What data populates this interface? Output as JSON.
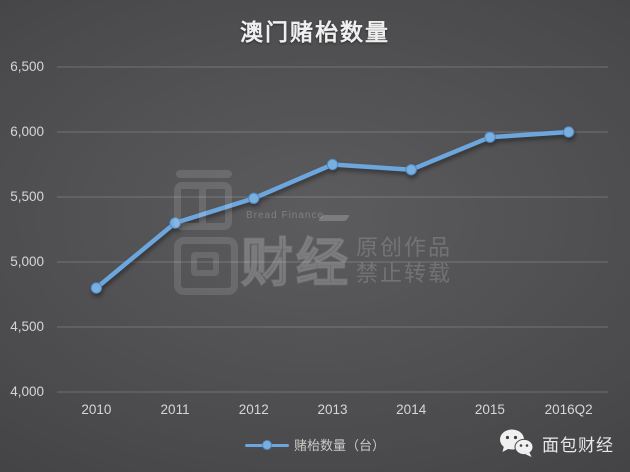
{
  "title": "澳门赌枱数量",
  "chart_data": {
    "type": "line",
    "title": "澳门赌枱数量",
    "categories": [
      "2010",
      "2011",
      "2012",
      "2013",
      "2014",
      "2015",
      "2016Q2"
    ],
    "series": [
      {
        "name": "赌枱数量（台）",
        "values": [
          4800,
          5300,
          5490,
          5750,
          5710,
          5960,
          6000
        ]
      }
    ],
    "ylim": [
      4000,
      6500
    ],
    "ytick_step": 500,
    "ytick_labels": [
      "4,000",
      "4,500",
      "5,000",
      "5,500",
      "6,000",
      "6,500"
    ],
    "xlabel": "",
    "ylabel": "",
    "grid": true,
    "legend_position": "bottom",
    "line_color": "#6da5dd",
    "marker_fill": "#79aede",
    "marker_stroke": "#4e88c4"
  },
  "legend": {
    "label": "赌枱数量（台）"
  },
  "watermark": {
    "brand_en": "Bread Finance",
    "brand_cn": "财经",
    "notice_line1": "原创作品",
    "notice_line2": "禁止转载"
  },
  "footer": {
    "brand": "面包财经"
  },
  "colors": {
    "background_center": "#5c5c5e",
    "background_edge": "#39393b",
    "gridline": "rgba(255,255,255,0.20)",
    "axis_text": "#d6d6d6",
    "title_text": "#efefef",
    "line": "#6da5dd"
  }
}
